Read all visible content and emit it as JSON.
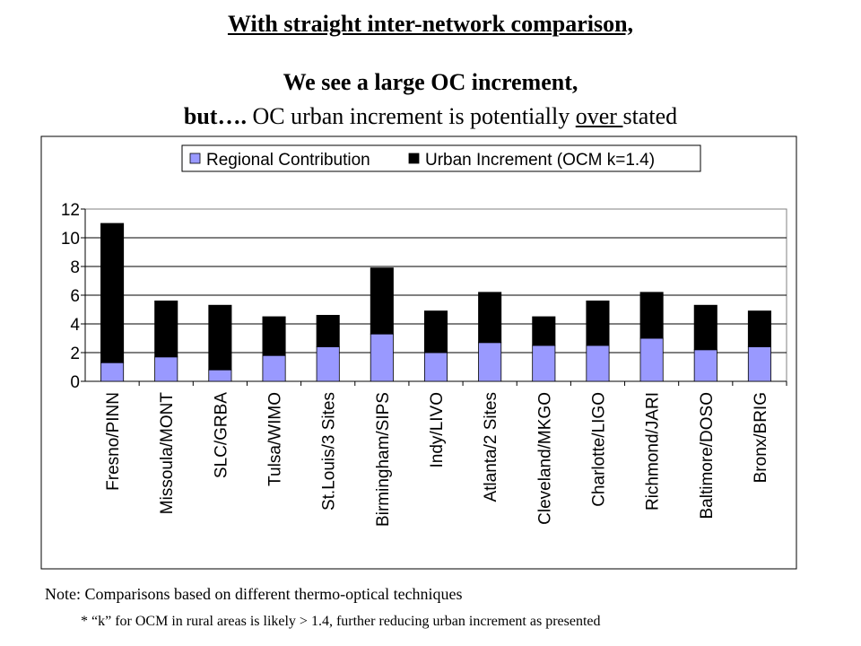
{
  "heading": {
    "title": "With straight inter-network comparison,",
    "subtitle": "We see a large OC increment,",
    "line3_bold": "but….",
    "line3_plain": " OC urban increment is potentially ",
    "line3_underlined": "over ",
    "line3_end": "stated"
  },
  "notes": {
    "note": "Note: Comparisons based on different thermo-optical techniques",
    "footnote": "* “k” for OCM in rural areas is likely > 1.4, further reducing urban increment as presented"
  },
  "colors": {
    "regional": "#9999ff",
    "urban": "#000000",
    "grid": "#000000",
    "plot_border": "#808080"
  },
  "chart_data": {
    "type": "bar",
    "stacked": true,
    "categories": [
      "Fresno/PINN",
      "Missoula/MONT",
      "SLC/GRBA",
      "Tulsa/WIMO",
      "St.Louis/3 Sites",
      "Birmingham/SIPS",
      "Indy/LIVO",
      "Atlanta/2 Sites",
      "Cleveland/MKGO",
      "Charlotte/LIGO",
      "Richmond/JARI",
      "Baltimore/DOSO",
      "Bronx/BRIG"
    ],
    "series": [
      {
        "name": "Regional Contribution",
        "color": "#9999ff",
        "values": [
          1.3,
          1.7,
          0.8,
          1.8,
          2.4,
          3.3,
          2.0,
          2.7,
          2.5,
          2.5,
          3.0,
          2.2,
          2.4
        ]
      },
      {
        "name": "Urban Increment (OCM k=1.4)",
        "color": "#000000",
        "values": [
          9.7,
          3.9,
          4.5,
          2.7,
          2.2,
          4.6,
          2.9,
          3.5,
          2.0,
          3.1,
          3.2,
          3.1,
          2.5
        ]
      }
    ],
    "ylim": [
      0,
      12
    ],
    "yticks": [
      0,
      2,
      4,
      6,
      8,
      10,
      12
    ],
    "grid": true,
    "legend_position": "top"
  }
}
